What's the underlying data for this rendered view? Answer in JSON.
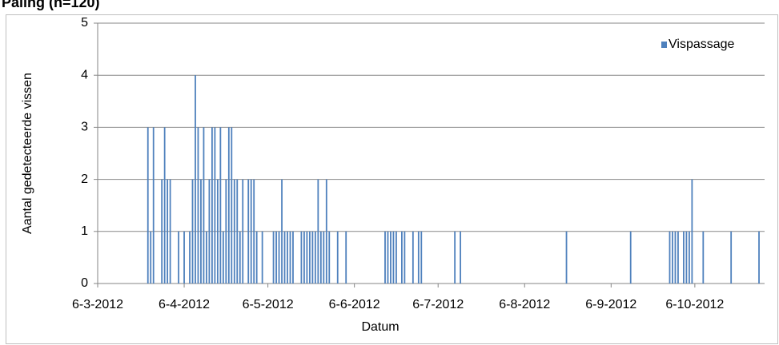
{
  "chart_data": {
    "type": "bar",
    "title": "Paling (n=120)",
    "x_label": "Datum",
    "y_label": "Aantal gedetecteerde vissen",
    "x": [
      "2012-03-24",
      "2012-03-25",
      "2012-03-26",
      "2012-03-29",
      "2012-03-30",
      "2012-03-31",
      "2012-04-01",
      "2012-04-04",
      "2012-04-06",
      "2012-04-08",
      "2012-04-09",
      "2012-04-10",
      "2012-04-11",
      "2012-04-12",
      "2012-04-13",
      "2012-04-14",
      "2012-04-15",
      "2012-04-16",
      "2012-04-17",
      "2012-04-18",
      "2012-04-19",
      "2012-04-20",
      "2012-04-21",
      "2012-04-22",
      "2012-04-23",
      "2012-04-24",
      "2012-04-25",
      "2012-04-26",
      "2012-04-27",
      "2012-04-29",
      "2012-04-30",
      "2012-05-01",
      "2012-05-02",
      "2012-05-04",
      "2012-05-08",
      "2012-05-09",
      "2012-05-10",
      "2012-05-11",
      "2012-05-12",
      "2012-05-13",
      "2012-05-14",
      "2012-05-15",
      "2012-05-18",
      "2012-05-19",
      "2012-05-20",
      "2012-05-21",
      "2012-05-22",
      "2012-05-23",
      "2012-05-24",
      "2012-05-25",
      "2012-05-26",
      "2012-05-27",
      "2012-05-28",
      "2012-05-31",
      "2012-06-03",
      "2012-06-17",
      "2012-06-18",
      "2012-06-19",
      "2012-06-20",
      "2012-06-21",
      "2012-06-23",
      "2012-06-24",
      "2012-06-27",
      "2012-06-29",
      "2012-06-30",
      "2012-07-12",
      "2012-07-14",
      "2012-08-21",
      "2012-09-13",
      "2012-09-27",
      "2012-09-28",
      "2012-09-29",
      "2012-09-30",
      "2012-10-02",
      "2012-10-03",
      "2012-10-04",
      "2012-10-05",
      "2012-10-09",
      "2012-10-19",
      "2012-10-29"
    ],
    "series": [
      {
        "name": "Vispassage",
        "color": "#4f81bd",
        "values": [
          3,
          1,
          3,
          2,
          3,
          2,
          2,
          1,
          1,
          1,
          2,
          4,
          3,
          2,
          3,
          1,
          2,
          3,
          3,
          2,
          3,
          1,
          2,
          3,
          3,
          2,
          2,
          1,
          2,
          2,
          2,
          2,
          1,
          1,
          1,
          1,
          1,
          2,
          1,
          1,
          1,
          1,
          1,
          1,
          1,
          1,
          1,
          1,
          2,
          1,
          1,
          2,
          1,
          1,
          1,
          1,
          1,
          1,
          1,
          1,
          1,
          1,
          1,
          1,
          1,
          1,
          1,
          1,
          1,
          1,
          1,
          1,
          1,
          1,
          1,
          1,
          2,
          1,
          1,
          1
        ]
      }
    ],
    "xlim": [
      "2012-03-06",
      "2012-10-31"
    ],
    "xticks": [
      {
        "value": "2012-03-06",
        "label": "6-3-2012"
      },
      {
        "value": "2012-04-06",
        "label": "6-4-2012"
      },
      {
        "value": "2012-05-06",
        "label": "6-5-2012"
      },
      {
        "value": "2012-06-06",
        "label": "6-6-2012"
      },
      {
        "value": "2012-07-06",
        "label": "6-7-2012"
      },
      {
        "value": "2012-08-06",
        "label": "6-8-2012"
      },
      {
        "value": "2012-09-06",
        "label": "6-9-2012"
      },
      {
        "value": "2012-10-06",
        "label": "6-10-2012"
      }
    ],
    "ylim": [
      0,
      5
    ],
    "yticks": [
      0,
      1,
      2,
      3,
      4,
      5
    ],
    "grid": true,
    "legend": "upper right"
  }
}
